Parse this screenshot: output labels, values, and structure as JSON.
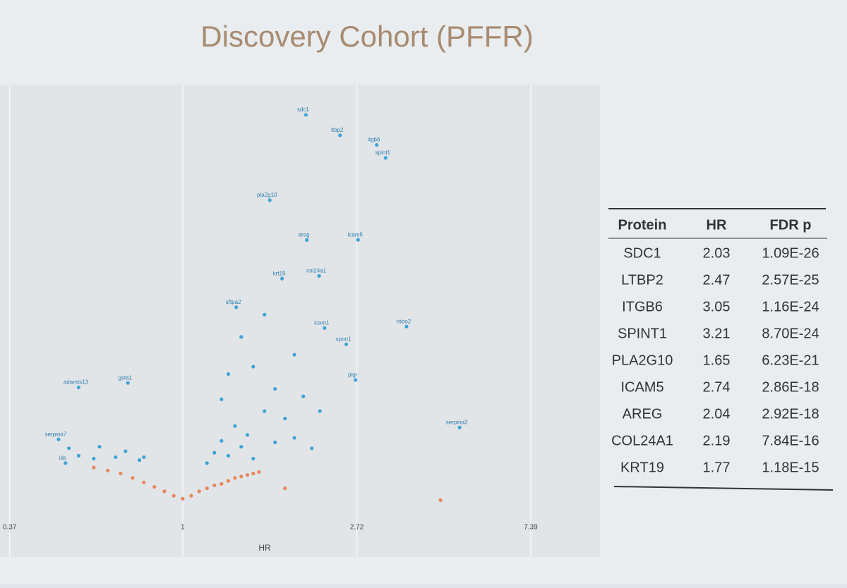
{
  "chart_data": {
    "type": "scatter",
    "title": "Discovery Cohort (PFFR)",
    "x_label": "HR",
    "log_x": true,
    "xlim": [
      0.35,
      11
    ],
    "ylim": [
      -0.5,
      28
    ],
    "xticks": [
      0.37,
      1,
      2.72,
      7.39
    ],
    "grid": true,
    "series": [
      {
        "color": "#3ea3d6",
        "labels": [
          "sdc1",
          "ltbp2",
          "itgb6",
          "spint1",
          "pla2g10",
          "icam5",
          "areg",
          "col24a1",
          "krt19",
          "robo2",
          "serpina3",
          "pigr",
          "spon1",
          "icam1",
          "adamts13",
          "serpina7",
          "ids",
          "gsta1",
          "sftpa2"
        ],
        "x": [
          2.03,
          2.47,
          3.05,
          3.21,
          1.65,
          2.74,
          2.04,
          2.19,
          1.77,
          3.62,
          4.91,
          2.7,
          2.56,
          2.26,
          0.55,
          0.49,
          0.51,
          0.73,
          1.36
        ],
        "y": [
          25.96,
          24.59,
          23.94,
          23.06,
          20.21,
          17.54,
          17.53,
          15.11,
          14.93,
          11.7,
          4.9,
          8.1,
          10.5,
          11.6,
          7.6,
          4.1,
          2.5,
          7.9,
          13.0
        ]
      },
      {
        "color": "#3ea3d6",
        "x": [
          0.52,
          0.55,
          0.6,
          0.62,
          0.68,
          0.72,
          0.78,
          0.8,
          1.15,
          1.2,
          1.25,
          1.3,
          1.35,
          1.4,
          1.45,
          1.5,
          1.6,
          1.7,
          1.8,
          1.9,
          2.0,
          2.1,
          1.3,
          1.5,
          1.7,
          1.9,
          2.2,
          1.4,
          1.6,
          1.25
        ],
        "y": [
          3.5,
          3.0,
          2.8,
          3.6,
          2.9,
          3.3,
          2.7,
          2.9,
          2.5,
          3.2,
          4.0,
          3.0,
          5.0,
          3.6,
          4.4,
          2.8,
          6.0,
          3.9,
          5.5,
          4.2,
          7.0,
          3.5,
          8.5,
          9.0,
          7.5,
          9.8,
          6.0,
          11.0,
          12.5,
          6.8
        ]
      },
      {
        "color": "#e8875a",
        "x": [
          0.6,
          0.65,
          0.7,
          0.75,
          0.8,
          0.85,
          0.9,
          0.95,
          1.0,
          1.05,
          1.1,
          1.15,
          1.2,
          1.25,
          1.3,
          1.35,
          1.4,
          1.45,
          1.5,
          1.55,
          1.8,
          4.4
        ],
        "y": [
          2.2,
          2.0,
          1.8,
          1.5,
          1.2,
          0.9,
          0.6,
          0.3,
          0.1,
          0.3,
          0.6,
          0.8,
          1.0,
          1.1,
          1.3,
          1.5,
          1.6,
          1.7,
          1.8,
          1.9,
          0.8,
          0
        ]
      }
    ]
  },
  "table": {
    "columns": [
      "Protein",
      "HR",
      "FDR p"
    ],
    "rows": [
      [
        "SDC1",
        2.03,
        "1.09E-26"
      ],
      [
        "LTBP2",
        2.47,
        "2.57E-25"
      ],
      [
        "ITGB6",
        3.05,
        "1.16E-24"
      ],
      [
        "SPINT1",
        3.21,
        "8.70E-24"
      ],
      [
        "PLA2G10",
        1.65,
        "6.23E-21"
      ],
      [
        "ICAM5",
        2.74,
        "2.86E-18"
      ],
      [
        "AREG",
        2.04,
        "2.92E-18"
      ],
      [
        "COL24A1",
        2.19,
        "7.84E-16"
      ],
      [
        "KRT19",
        1.77,
        "1.18E-15"
      ]
    ]
  }
}
